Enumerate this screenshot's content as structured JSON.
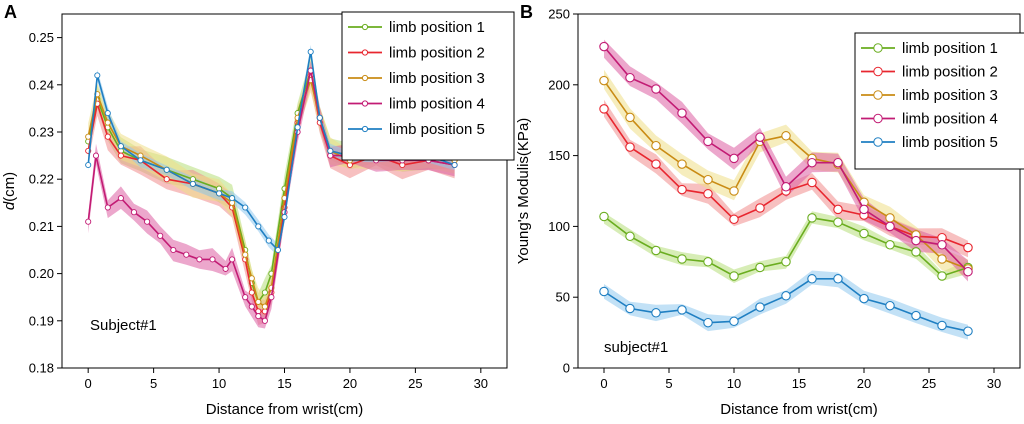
{
  "colors": {
    "s1": "#6aad1f",
    "s2": "#e8262f",
    "s3": "#c98b14",
    "s4": "#c21b74",
    "s5": "#1f7fc2",
    "band1": "#b6df7a",
    "band2": "#f08c8c",
    "band3": "#eede86",
    "band4": "#dc5ea3",
    "band5": "#8fc8ee",
    "axis": "#000000"
  },
  "chart_data": [
    {
      "panel": "A",
      "type": "line",
      "title": "",
      "annotation": "Subject#1",
      "xlabel": "Distance from wrist(cm)",
      "ylabel_italic": "d",
      "ylabel_rest": "(cm)",
      "xlim": [
        -2,
        32
      ],
      "ylim": [
        0.18,
        0.255
      ],
      "xticks": [
        "0",
        "5",
        "10",
        "15",
        "20",
        "25",
        "30"
      ],
      "xtick_values": [
        0,
        5,
        10,
        15,
        20,
        25,
        30
      ],
      "yticks": [
        "0.18",
        "0.19",
        "0.20",
        "0.21",
        "0.22",
        "0.23",
        "0.24",
        "0.25"
      ],
      "ytick_values": [
        0.18,
        0.19,
        0.2,
        0.21,
        0.22,
        0.23,
        0.24,
        0.25
      ],
      "legend_position": "top-right",
      "series": [
        {
          "name": "limb position 1",
          "color": "s1",
          "band": "band1",
          "band_width": 0.003,
          "x": [
            0,
            0.7,
            1.5,
            2.5,
            4,
            6,
            8,
            10,
            11,
            12,
            12.5,
            13,
            13.5,
            14,
            15,
            16,
            17,
            17.7,
            18.5,
            20,
            22,
            24,
            26,
            28
          ],
          "y": [
            0.228,
            0.237,
            0.231,
            0.226,
            0.224,
            0.222,
            0.22,
            0.218,
            0.216,
            0.205,
            0.198,
            0.194,
            0.196,
            0.2,
            0.218,
            0.234,
            0.243,
            0.233,
            0.226,
            0.225,
            0.226,
            0.224,
            0.225,
            0.224
          ]
        },
        {
          "name": "limb position 2",
          "color": "s2",
          "band": "band2",
          "band_width": 0.003,
          "x": [
            0,
            0.7,
            1.5,
            2.5,
            4,
            6,
            8,
            10,
            11,
            12,
            12.5,
            13,
            13.5,
            14,
            15,
            16,
            17,
            17.7,
            18.5,
            20,
            22,
            24,
            26,
            28
          ],
          "y": [
            0.226,
            0.236,
            0.229,
            0.225,
            0.224,
            0.22,
            0.219,
            0.217,
            0.214,
            0.203,
            0.196,
            0.192,
            0.192,
            0.196,
            0.214,
            0.232,
            0.242,
            0.232,
            0.225,
            0.223,
            0.225,
            0.223,
            0.224,
            0.223
          ]
        },
        {
          "name": "limb position 3",
          "color": "s3",
          "band": "band3",
          "band_width": 0.003,
          "x": [
            0,
            0.7,
            1.5,
            2.5,
            4,
            6,
            8,
            10,
            11,
            12,
            12.5,
            13,
            13.5,
            14,
            15,
            16,
            17,
            17.7,
            18.5,
            20,
            22,
            24,
            26,
            28
          ],
          "y": [
            0.229,
            0.238,
            0.232,
            0.227,
            0.225,
            0.222,
            0.219,
            0.217,
            0.215,
            0.204,
            0.199,
            0.194,
            0.193,
            0.197,
            0.216,
            0.233,
            0.241,
            0.233,
            0.226,
            0.224,
            0.225,
            0.224,
            0.225,
            0.224
          ]
        },
        {
          "name": "limb position 4",
          "color": "s4",
          "band": "band4",
          "band_width": 0.0025,
          "x": [
            0,
            0.6,
            1.5,
            2.5,
            3.5,
            4.5,
            5.5,
            6.5,
            7.5,
            8.5,
            9.5,
            10.5,
            11,
            12,
            12.5,
            13,
            13.5,
            14,
            15,
            16,
            17,
            17.7,
            18.5,
            20,
            22,
            24,
            26,
            28
          ],
          "y": [
            0.211,
            0.225,
            0.214,
            0.216,
            0.213,
            0.211,
            0.208,
            0.205,
            0.204,
            0.203,
            0.203,
            0.201,
            0.203,
            0.195,
            0.193,
            0.191,
            0.19,
            0.195,
            0.213,
            0.23,
            0.243,
            0.233,
            0.225,
            0.225,
            0.224,
            0.224,
            0.224,
            0.223
          ]
        },
        {
          "name": "limb position 5",
          "color": "s5",
          "band": "band5",
          "band_width": 0.0015,
          "x": [
            0,
            0.7,
            1.5,
            2.5,
            4,
            6,
            8,
            10,
            11,
            12,
            13,
            13.8,
            14.5,
            15,
            16,
            17,
            17.7,
            18.5,
            20,
            22,
            24,
            26,
            28
          ],
          "y": [
            0.223,
            0.242,
            0.234,
            0.227,
            0.224,
            0.222,
            0.219,
            0.217,
            0.216,
            0.214,
            0.21,
            0.207,
            0.205,
            0.212,
            0.231,
            0.247,
            0.233,
            0.226,
            0.225,
            0.225,
            0.225,
            0.225,
            0.223
          ]
        }
      ]
    },
    {
      "panel": "B",
      "type": "line",
      "title": "",
      "annotation": "subject#1",
      "xlabel": "Distance from wrist(cm)",
      "ylabel": "Young's Modulis(KPa)",
      "xlim": [
        -2,
        32
      ],
      "ylim": [
        0,
        250
      ],
      "xticks": [
        "0",
        "5",
        "10",
        "15",
        "20",
        "25",
        "30"
      ],
      "xtick_values": [
        0,
        5,
        10,
        15,
        20,
        25,
        30
      ],
      "yticks": [
        "0",
        "50",
        "100",
        "150",
        "200",
        "250"
      ],
      "ytick_values": [
        0,
        50,
        100,
        150,
        200,
        250
      ],
      "legend_position": "top-right",
      "series": [
        {
          "name": "limb position 1",
          "color": "s1",
          "band": "band1",
          "band_width": 5,
          "x": [
            0,
            2,
            4,
            6,
            8,
            10,
            12,
            14,
            16,
            18,
            20,
            22,
            24,
            26,
            28
          ],
          "y": [
            107,
            93,
            83,
            77,
            75,
            65,
            71,
            75,
            106,
            103,
            95,
            87,
            82,
            65,
            71
          ]
        },
        {
          "name": "limb position 2",
          "color": "s2",
          "band": "band2",
          "band_width": 7,
          "x": [
            0,
            2,
            4,
            6,
            8,
            10,
            12,
            14,
            16,
            18,
            20,
            22,
            24,
            26,
            28
          ],
          "y": [
            183,
            156,
            144,
            126,
            123,
            105,
            113,
            125,
            131,
            112,
            108,
            100,
            93,
            92,
            85
          ]
        },
        {
          "name": "limb position 3",
          "color": "s3",
          "band": "band3",
          "band_width": 8,
          "x": [
            0,
            2,
            4,
            6,
            8,
            10,
            12,
            14,
            16,
            18,
            20,
            22,
            24,
            26,
            28
          ],
          "y": [
            203,
            177,
            157,
            144,
            133,
            125,
            160,
            164,
            148,
            144,
            117,
            106,
            94,
            77,
            70
          ]
        },
        {
          "name": "limb position 4",
          "color": "s4",
          "band": "band4",
          "band_width": 8,
          "x": [
            0,
            2,
            4,
            6,
            8,
            10,
            12,
            14,
            16,
            18,
            20,
            22,
            24,
            26,
            28
          ],
          "y": [
            227,
            205,
            197,
            180,
            160,
            148,
            163,
            128,
            145,
            145,
            112,
            100,
            90,
            87,
            68
          ]
        },
        {
          "name": "limb position 5",
          "color": "s5",
          "band": "band5",
          "band_width": 6,
          "x": [
            0,
            2,
            4,
            6,
            8,
            10,
            12,
            14,
            16,
            18,
            20,
            22,
            24,
            26,
            28
          ],
          "y": [
            54,
            42,
            39,
            41,
            32,
            33,
            43,
            51,
            63,
            63,
            49,
            44,
            37,
            30,
            26
          ]
        }
      ]
    }
  ]
}
